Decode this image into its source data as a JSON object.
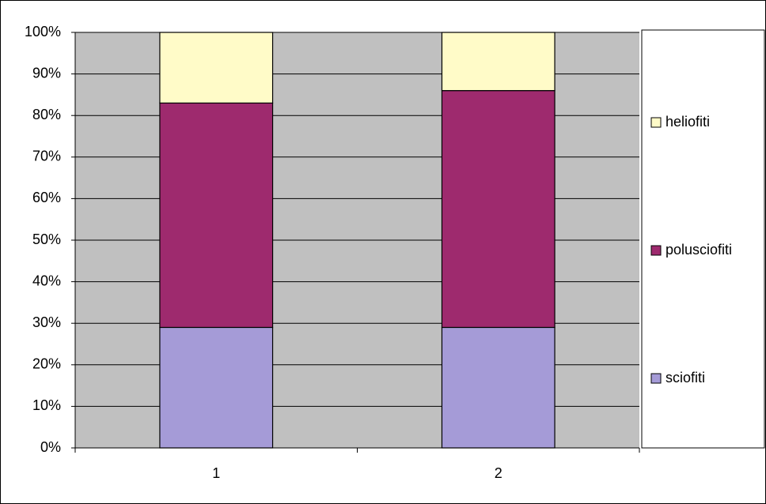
{
  "chart_data": {
    "type": "stacked-bar-100",
    "categories": [
      "1",
      "2"
    ],
    "series": [
      {
        "name": "sciofiti",
        "color": "#a59bd7",
        "values": [
          29,
          29
        ]
      },
      {
        "name": "polusciofiti",
        "color": "#9e2a6e",
        "values": [
          54,
          57
        ]
      },
      {
        "name": "heliofiti",
        "color": "#fffbc8",
        "values": [
          17,
          14
        ]
      }
    ],
    "ylim": [
      0,
      100
    ],
    "yticks": [
      {
        "value": 0,
        "label": "0%"
      },
      {
        "value": 10,
        "label": "10%"
      },
      {
        "value": 20,
        "label": "20%"
      },
      {
        "value": 30,
        "label": "30%"
      },
      {
        "value": 40,
        "label": "40%"
      },
      {
        "value": 50,
        "label": "50%"
      },
      {
        "value": 60,
        "label": "60%"
      },
      {
        "value": 70,
        "label": "70%"
      },
      {
        "value": 80,
        "label": "80%"
      },
      {
        "value": 90,
        "label": "90%"
      },
      {
        "value": 100,
        "label": "100%"
      }
    ],
    "grid": true,
    "legend": "right"
  }
}
